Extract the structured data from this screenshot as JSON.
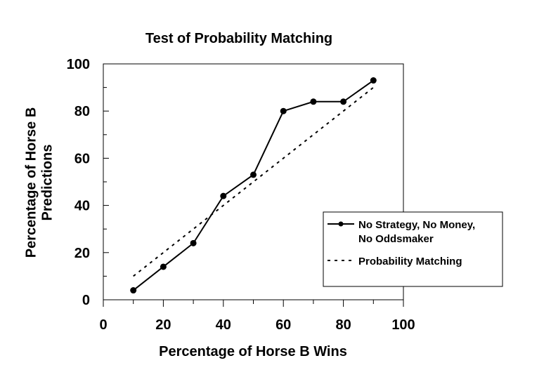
{
  "chart_data": {
    "type": "line",
    "title": "Test of Probability Matching",
    "xlabel": "Percentage of Horse B Wins",
    "ylabel_line1": "Percentage of Horse B",
    "ylabel_line2": "Predictions",
    "xlim": [
      0,
      100
    ],
    "ylim": [
      0,
      100
    ],
    "x_ticks": [
      0,
      20,
      40,
      60,
      80,
      100
    ],
    "y_ticks": [
      0,
      20,
      40,
      60,
      80,
      100
    ],
    "x_tick_labels": [
      "0",
      "20",
      "40",
      "60",
      "80",
      "100"
    ],
    "y_tick_labels": [
      "0",
      "20",
      "40",
      "60",
      "80",
      "100"
    ],
    "grid": false,
    "legend_position": "right",
    "series": [
      {
        "name_line1": "No Strategy, No Money,",
        "name_line2": "No Oddsmaker",
        "style": "solid-with-markers",
        "color": "#000000",
        "x": [
          10,
          20,
          30,
          40,
          50,
          60,
          70,
          80,
          90
        ],
        "y": [
          4,
          14,
          24,
          44,
          53,
          80,
          84,
          84,
          93
        ]
      },
      {
        "name": "Probability Matching",
        "style": "dashed",
        "color": "#000000",
        "x": [
          10,
          20,
          30,
          40,
          50,
          60,
          70,
          80,
          90
        ],
        "y": [
          10,
          20,
          30,
          40,
          50,
          60,
          70,
          80,
          90
        ]
      }
    ]
  }
}
